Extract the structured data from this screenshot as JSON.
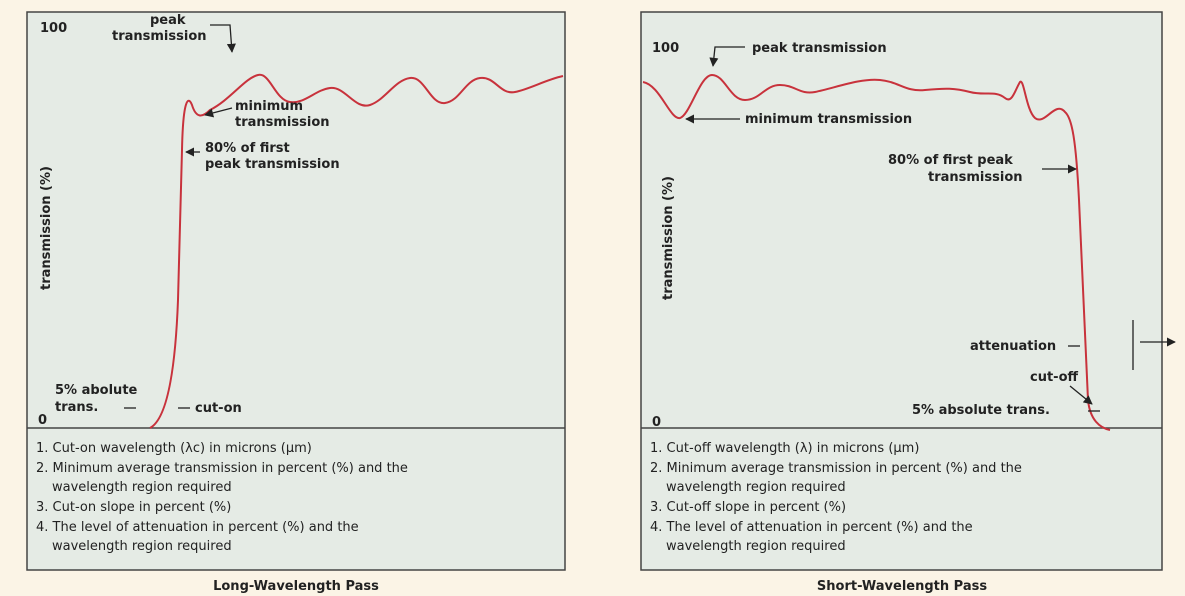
{
  "panels": [
    {
      "y_label": "transmission (%)",
      "y_top": "100",
      "y_bottom": "0",
      "annotations": {
        "peak": [
          "peak",
          "transmission"
        ],
        "minimum": [
          "minimum",
          "transmission"
        ],
        "eighty": [
          "80% of first",
          "peak transmission"
        ],
        "five": [
          "5% abolute",
          "trans."
        ],
        "cut": "cut-on"
      },
      "notes": [
        [
          "1. Cut-on wavelength (λc) in microns (μm)"
        ],
        [
          "2. Minimum average transmission in percent (%) and the",
          "wavelength region required"
        ],
        [
          "3. Cut-on slope in percent (%)"
        ],
        [
          "4. The level of attenuation in percent (%) and the",
          "wavelength region required"
        ]
      ],
      "caption": "Long-Wavelength Pass"
    },
    {
      "y_label": "transmission (%)",
      "y_top": "100",
      "y_bottom": "0",
      "annotations": {
        "peak": "peak transmission",
        "minimum": "minimum transmission",
        "eighty": [
          "80% of first peak",
          "transmission"
        ],
        "attenuation": "attenuation",
        "cut": "cut-off",
        "five": "5% absolute trans."
      },
      "notes": [
        [
          "1. Cut-off wavelength (λ) in microns (μm)"
        ],
        [
          "2. Minimum average transmission in percent (%) and the",
          "wavelength region required"
        ],
        [
          "3. Cut-off slope in percent (%)"
        ],
        [
          "4. The level of attenuation in percent (%) and the",
          "wavelength region required"
        ]
      ],
      "caption": "Short-Wavelength Pass"
    }
  ]
}
